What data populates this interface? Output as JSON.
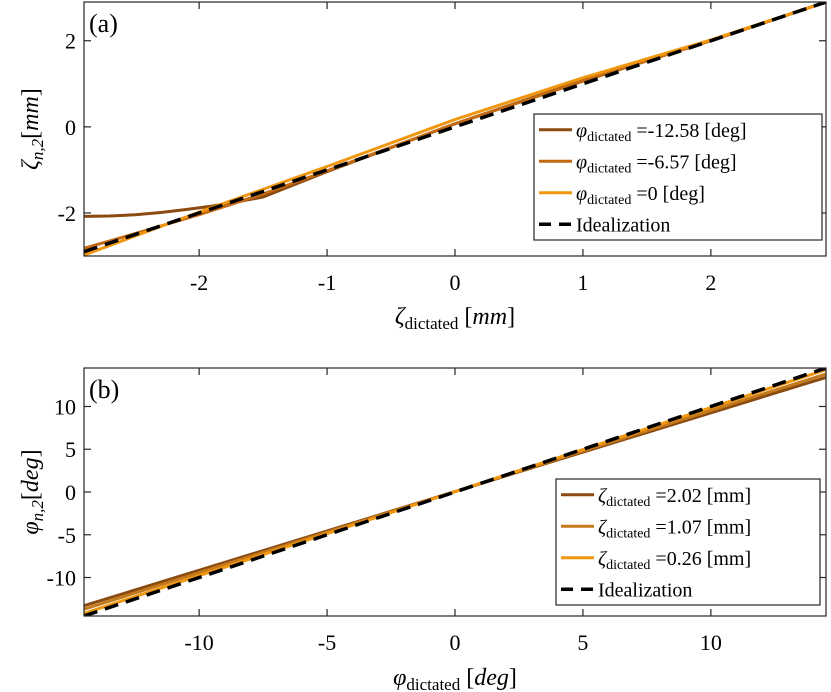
{
  "chart_data": [
    {
      "type": "line",
      "panel_label": "(a)",
      "xlabel": {
        "symbol": "ζ",
        "subscript": "dictated",
        "unit": "mm"
      },
      "ylabel": {
        "symbol": "ζ",
        "subscript": "n,2",
        "unit": "mm"
      },
      "xlim": [
        -2.9,
        2.9
      ],
      "ylim": [
        -3.0,
        2.9
      ],
      "xticks": [
        -2,
        -1,
        0,
        1,
        2
      ],
      "yticks": [
        -2,
        0,
        2
      ],
      "grid": false,
      "legend_position": "lower-right",
      "series": [
        {
          "name": "φdictated =-12.58 [deg]",
          "legend_symbol": "φ",
          "legend_sub": "dictated",
          "legend_value": "=-12.58 [deg]",
          "color": "#8B4A10",
          "dash": "solid",
          "x": [
            -2.9,
            -2.7,
            -2.5,
            -2.3,
            -2.1,
            -1.9,
            -1.7,
            -1.5,
            -1.0,
            0.0,
            1.0,
            2.0,
            2.9
          ],
          "y": [
            -2.08,
            -2.07,
            -2.04,
            -1.99,
            -1.92,
            -1.84,
            -1.74,
            -1.63,
            -1.04,
            0.07,
            1.08,
            2.0,
            2.9
          ]
        },
        {
          "name": "φdictated =-6.57 [deg]",
          "legend_symbol": "φ",
          "legend_sub": "dictated",
          "legend_value": "=-6.57 [deg]",
          "color": "#C46A12",
          "dash": "solid",
          "x": [
            -2.9,
            -2.5,
            -2.0,
            -1.5,
            -1.0,
            0.0,
            1.0,
            2.0,
            2.9
          ],
          "y": [
            -2.82,
            -2.48,
            -2.04,
            -1.56,
            -1.02,
            0.07,
            1.06,
            2.0,
            2.9
          ]
        },
        {
          "name": "φdictated =0 [deg]",
          "legend_symbol": "φ",
          "legend_sub": "dictated",
          "legend_value": "=0 [deg]",
          "color": "#F0960F",
          "dash": "solid",
          "x": [
            -2.9,
            -2.0,
            -1.0,
            0.0,
            1.0,
            2.0,
            2.9
          ],
          "y": [
            -2.98,
            -1.98,
            -0.92,
            0.17,
            1.14,
            2.02,
            2.9
          ]
        },
        {
          "name": "Idealization",
          "legend_value": "Idealization",
          "color": "#000000",
          "dash": "dashed",
          "x": [
            -2.9,
            2.9
          ],
          "y": [
            -2.9,
            2.9
          ]
        }
      ]
    },
    {
      "type": "line",
      "panel_label": "(b)",
      "xlabel": {
        "symbol": "φ",
        "subscript": "dictated",
        "unit": "deg"
      },
      "ylabel": {
        "symbol": "φ",
        "subscript": "n,2",
        "unit": "deg"
      },
      "xlim": [
        -14.5,
        14.5
      ],
      "ylim": [
        -14.5,
        14.5
      ],
      "xticks": [
        -10,
        -5,
        0,
        5,
        10
      ],
      "yticks": [
        -10,
        -5,
        0,
        5,
        10
      ],
      "grid": false,
      "legend_position": "lower-right",
      "series": [
        {
          "name": "ζdictated =2.02 [mm]",
          "legend_symbol": "ζ",
          "legend_sub": "dictated",
          "legend_value": "=2.02 [mm]",
          "color": "#8B4A10",
          "dash": "solid",
          "x": [
            -14.5,
            14.5
          ],
          "y": [
            -13.3,
            13.4
          ]
        },
        {
          "name": "ζdictated =1.07 [mm]",
          "legend_symbol": "ζ",
          "legend_sub": "dictated",
          "legend_value": "=1.07 [mm]",
          "color": "#C47A1A",
          "dash": "solid",
          "x": [
            -14.5,
            14.5
          ],
          "y": [
            -13.7,
            13.8
          ]
        },
        {
          "name": "ζdictated =0.26 [mm]",
          "legend_symbol": "ζ",
          "legend_sub": "dictated",
          "legend_value": "=0.26 [mm]",
          "color": "#F0960F",
          "dash": "solid",
          "x": [
            -14.5,
            14.5
          ],
          "y": [
            -14.2,
            14.3
          ]
        },
        {
          "name": "Idealization",
          "legend_value": "Idealization",
          "color": "#000000",
          "dash": "dashed",
          "x": [
            -14.5,
            14.5
          ],
          "y": [
            -14.5,
            14.5
          ]
        }
      ]
    }
  ]
}
